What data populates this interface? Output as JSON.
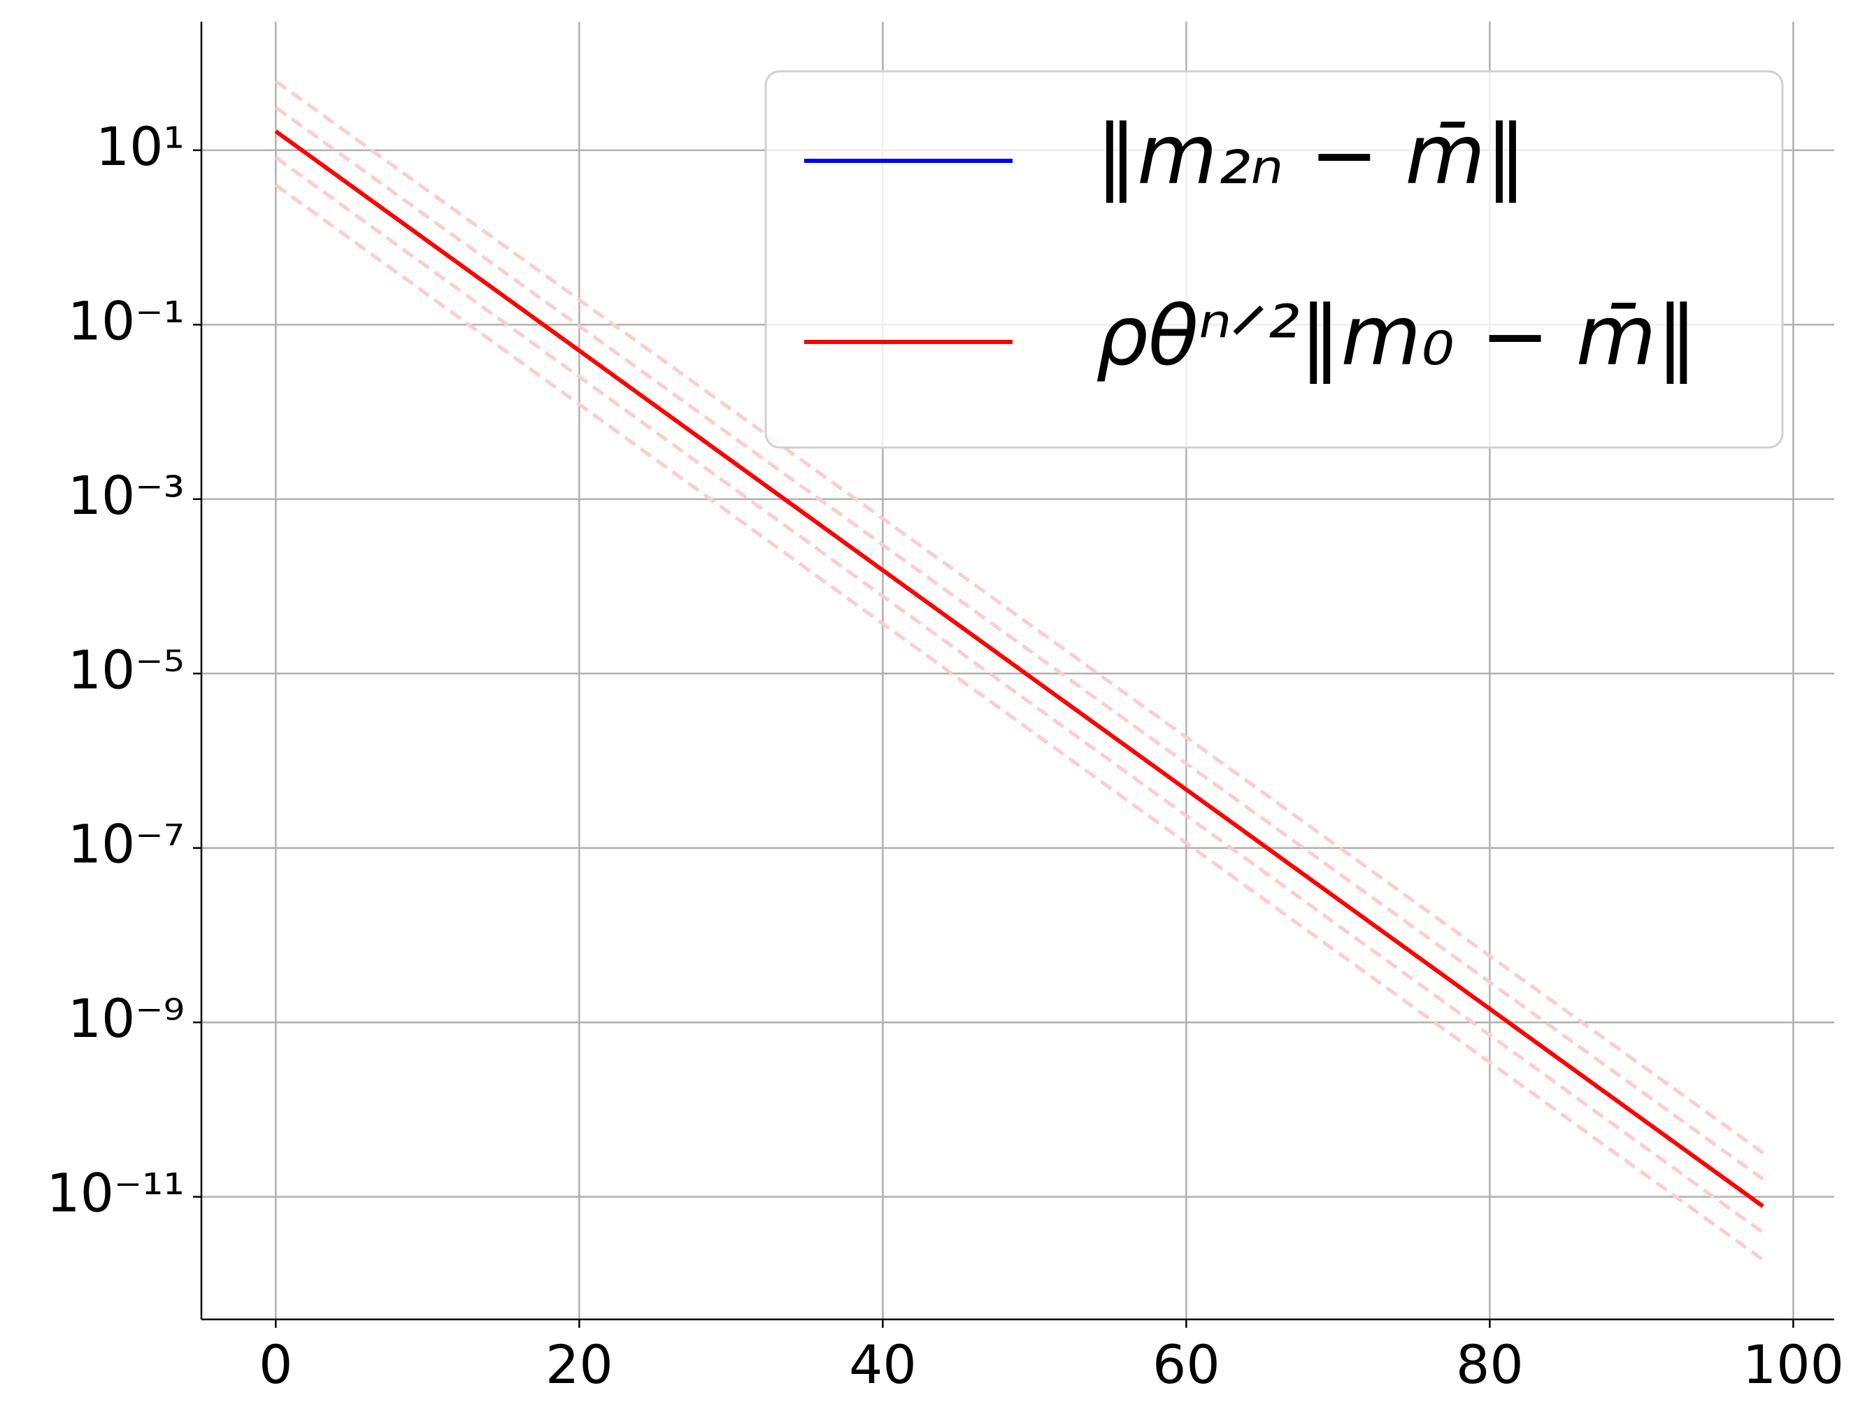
{
  "chart_data": {
    "type": "line",
    "log_y": true,
    "grid": true,
    "legend_position": "upper right",
    "xlim": [
      -4.9,
      102.7
    ],
    "xticks": [
      0,
      20,
      40,
      60,
      80,
      100
    ],
    "ylim": [
      298,
      3.93e-13
    ],
    "yticks": [
      {
        "value": 10,
        "label": "10¹"
      },
      {
        "value": 0.1,
        "label": "10⁻¹"
      },
      {
        "value": 0.001,
        "label": "10⁻³"
      },
      {
        "value": 1e-05,
        "label": "10⁻⁵"
      },
      {
        "value": 1e-07,
        "label": "10⁻⁷"
      },
      {
        "value": 1e-09,
        "label": "10⁻⁹"
      },
      {
        "value": 1e-11,
        "label": "10⁻¹¹"
      }
    ],
    "series": [
      {
        "color": "#ffcccc",
        "dashed": true,
        "x": [
          0,
          98
        ],
        "values": [
          62,
          3.2e-11
        ]
      },
      {
        "color": "#ffcccc",
        "dashed": true,
        "x": [
          0,
          98
        ],
        "values": [
          31,
          1.6e-11
        ]
      },
      {
        "color": "#ffcccc",
        "dashed": true,
        "x": [
          0,
          98
        ],
        "values": [
          8.3,
          3.9e-12
        ]
      },
      {
        "color": "#ffcccc",
        "dashed": true,
        "x": [
          0,
          98
        ],
        "values": [
          4.0,
          1.9e-12
        ]
      },
      {
        "name": "‖m₂ₙ − m̄‖",
        "color": "#0000ff",
        "width": 3.5,
        "x": [
          0,
          20,
          40,
          60,
          80,
          98
        ],
        "values": [
          16.5,
          0.0504,
          0.000153,
          4.68e-07,
          1.43e-09,
          7.8e-12
        ]
      },
      {
        "name": "ρθⁿᐟ²‖m₀ − m̄‖",
        "color": "#ff0000",
        "width": 6,
        "x": [
          0,
          20,
          40,
          60,
          80,
          98
        ],
        "values": [
          16.5,
          0.0504,
          0.000153,
          4.68e-07,
          1.43e-09,
          7.8e-12
        ]
      }
    ]
  }
}
